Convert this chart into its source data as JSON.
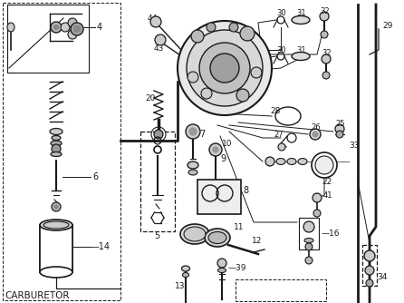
{
  "title": "CARBURETOR",
  "bg_color": "#ffffff",
  "line_color": "#1a1a1a",
  "text_color": "#1a1a1a",
  "fig_w": 4.46,
  "fig_h": 3.34,
  "dpi": 100
}
